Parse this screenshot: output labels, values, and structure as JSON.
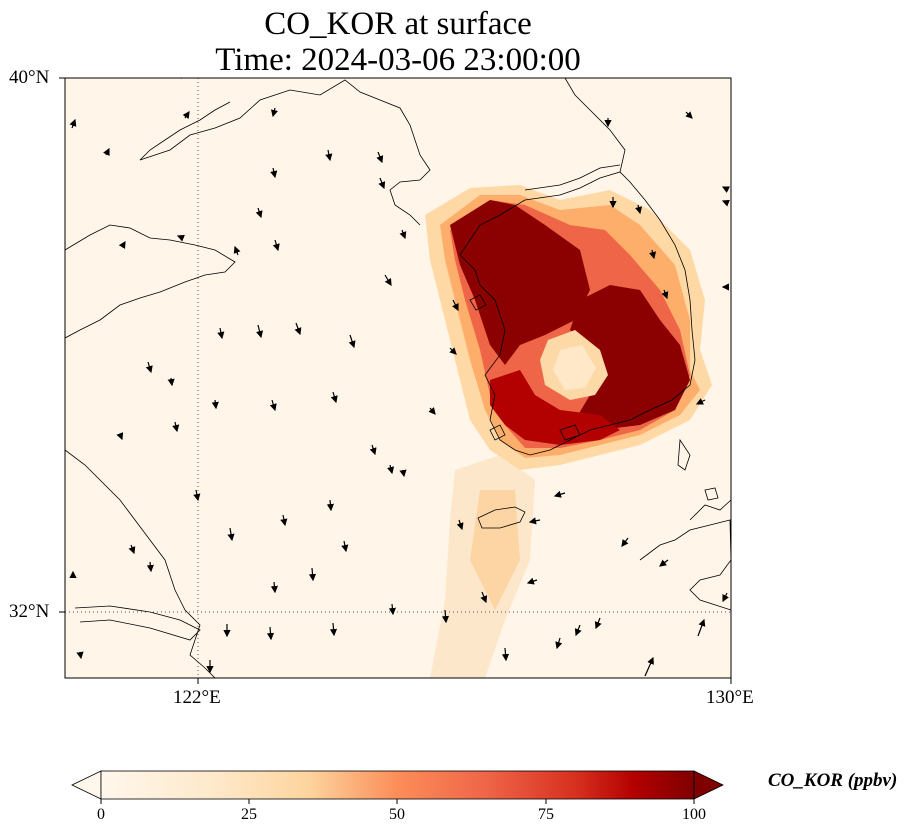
{
  "title": {
    "line1": "CO_KOR at surface",
    "line2": "Time: 2024-03-06 23:00:00"
  },
  "map": {
    "variable": "CO_KOR",
    "units": "ppbv",
    "lon_range": [
      120,
      130
    ],
    "lat_range": [
      31,
      40
    ],
    "lon_ticks": [
      {
        "value": 122,
        "label": "122°E"
      },
      {
        "value": 130,
        "label": "130°E"
      }
    ],
    "lat_ticks": [
      {
        "value": 40,
        "label": "40°N"
      },
      {
        "value": 32,
        "label": "32°N"
      }
    ],
    "gridlines": {
      "lon": [
        122
      ],
      "lat": [
        32
      ],
      "style": "dotted"
    },
    "colormap": "OrRd",
    "wind_vectors": true
  },
  "colorbar": {
    "label": "CO_KOR (ppbv)",
    "min": 0,
    "max": 100,
    "ticks": [
      "0",
      "25",
      "50",
      "75",
      "100"
    ],
    "extend": "both"
  }
}
